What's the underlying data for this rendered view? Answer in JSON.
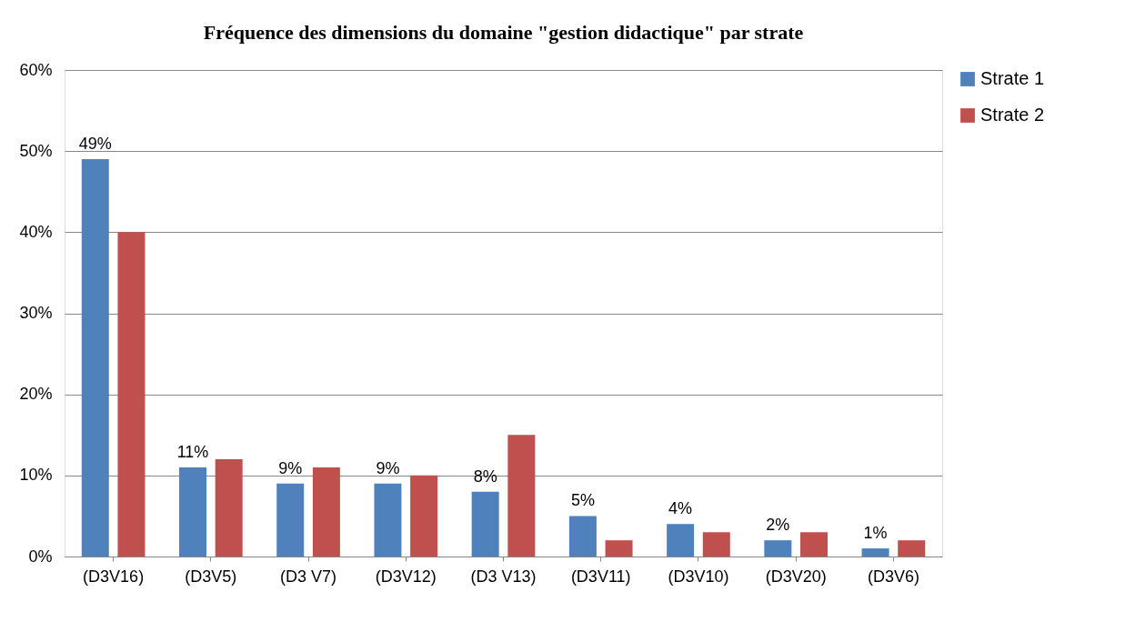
{
  "chart_data": {
    "type": "bar",
    "title": "Fréquence des dimensions du domaine \"gestion didactique\" par strate",
    "categories": [
      "(D3V16)",
      "(D3V5)",
      "(D3 V7)",
      "(D3V12)",
      "(D3 V13)",
      "(D3V11)",
      "(D3V10)",
      "(D3V20)",
      "(D3V6)"
    ],
    "series": [
      {
        "name": "Strate 1",
        "color": "#4f81bd",
        "values": [
          49,
          11,
          9,
          9,
          8,
          5,
          4,
          2,
          1
        ],
        "value_labels": [
          "49%",
          "11%",
          "9%",
          "9%",
          "8%",
          "5%",
          "4%",
          "2%",
          "1%"
        ]
      },
      {
        "name": "Strate 2",
        "color": "#c0504d",
        "values": [
          40,
          12,
          11,
          10,
          15,
          2,
          3,
          3,
          2
        ]
      }
    ],
    "ylim": [
      0,
      60
    ],
    "yticks": [
      {
        "value": 0,
        "label": "0%"
      },
      {
        "value": 10,
        "label": "10%"
      },
      {
        "value": 20,
        "label": "20%"
      },
      {
        "value": 30,
        "label": "30%"
      },
      {
        "value": 40,
        "label": "40%"
      },
      {
        "value": 50,
        "label": "50%"
      },
      {
        "value": 60,
        "label": "60%"
      }
    ],
    "grid": "y",
    "legend": "right"
  }
}
